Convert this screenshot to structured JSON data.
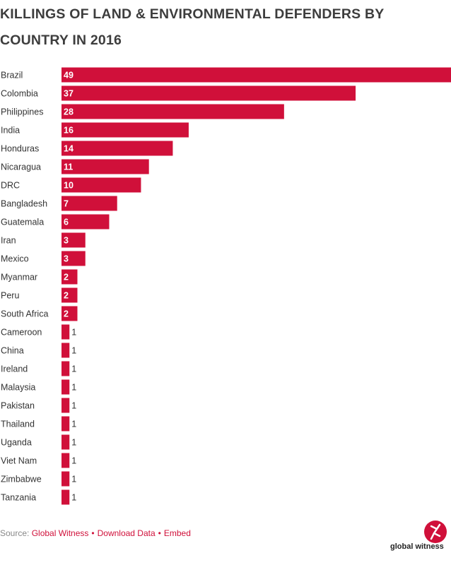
{
  "chart_data": {
    "type": "barh",
    "title": "KILLINGS OF LAND & ENVIRONMENTAL DEFENDERS BY COUNTRY IN 2016",
    "categories": [
      "Brazil",
      "Colombia",
      "Philippines",
      "India",
      "Honduras",
      "Nicaragua",
      "DRC",
      "Bangladesh",
      "Guatemala",
      "Iran",
      "Mexico",
      "Myanmar",
      "Peru",
      "South Africa",
      "Cameroon",
      "China",
      "Ireland",
      "Malaysia",
      "Pakistan",
      "Thailand",
      "Uganda",
      "Viet Nam",
      "Zimbabwe",
      "Tanzania"
    ],
    "values": [
      49,
      37,
      28,
      16,
      14,
      11,
      10,
      7,
      6,
      3,
      3,
      2,
      2,
      2,
      1,
      1,
      1,
      1,
      1,
      1,
      1,
      1,
      1,
      1
    ],
    "color": "#d0103a",
    "source_label": "Source:",
    "source_links": [
      "Global Witness",
      "Download Data",
      "Embed"
    ],
    "separator": "•",
    "logo_text": "global witness"
  }
}
